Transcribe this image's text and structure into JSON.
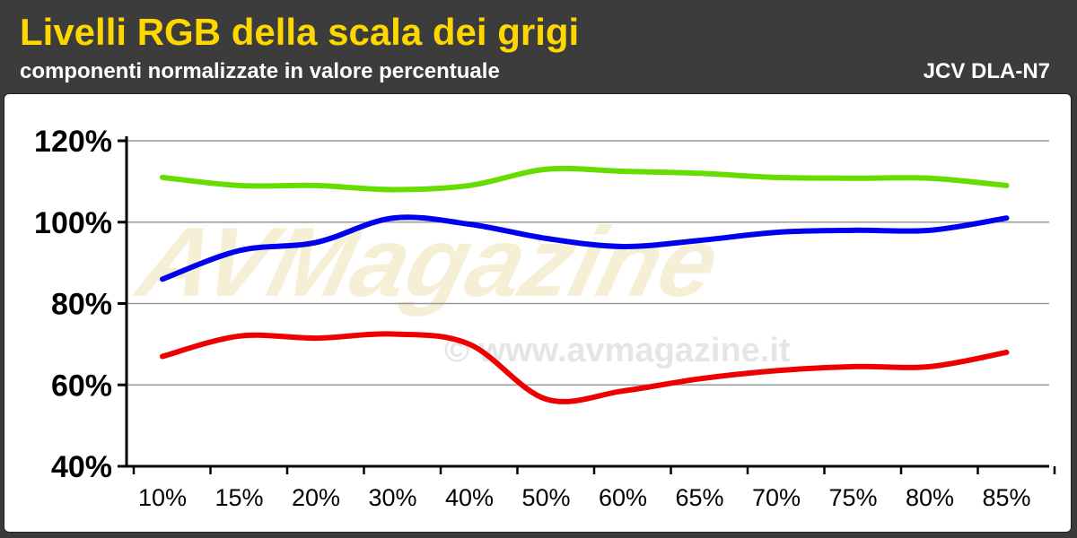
{
  "header": {
    "title": "Livelli RGB della scala dei grigi",
    "subtitle": "componenti normalizzate in valore percentuale",
    "device": "JCV DLA-N7"
  },
  "watermark": {
    "logo_text": "AVMagazine",
    "url_text": "© www.avmagazine.it"
  },
  "colors": {
    "title": "#ffd700",
    "header_bg": "#3c3c3c",
    "green": "#66dd00",
    "blue": "#0000ee",
    "red": "#ee0000",
    "grid": "#999999"
  },
  "chart_data": {
    "type": "line",
    "title": "Livelli RGB della scala dei grigi",
    "subtitle": "componenti normalizzate in valore percentuale",
    "categories": [
      "10%",
      "15%",
      "20%",
      "30%",
      "40%",
      "50%",
      "60%",
      "65%",
      "70%",
      "75%",
      "80%",
      "85%"
    ],
    "y_ticks": [
      "120%",
      "100%",
      "80%",
      "60%",
      "40%"
    ],
    "ylim": [
      40,
      120
    ],
    "grid": true,
    "series": [
      {
        "color": "#66dd00",
        "values": [
          111,
          109,
          109,
          108,
          109,
          113,
          112.5,
          112,
          111,
          110.8,
          110.8,
          109
        ]
      },
      {
        "color": "#0000ee",
        "values": [
          86,
          93,
          95,
          101,
          99.5,
          96,
          94,
          95.5,
          97.5,
          98,
          98,
          101
        ]
      },
      {
        "color": "#ee0000",
        "values": [
          67,
          72,
          71.5,
          72.5,
          70,
          56.5,
          58.5,
          61.5,
          63.5,
          64.5,
          64.5,
          68
        ]
      }
    ]
  }
}
